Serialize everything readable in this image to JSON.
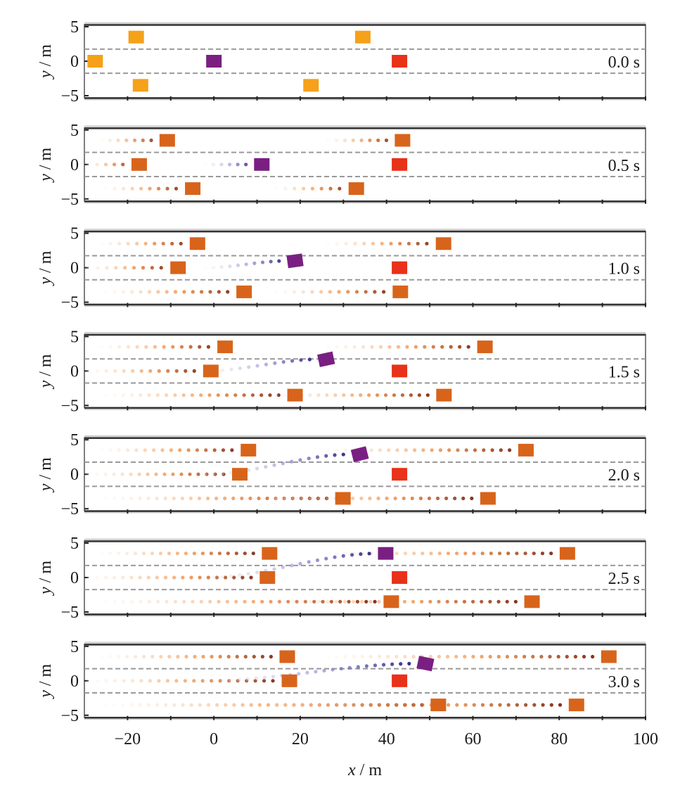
{
  "chart_data": {
    "type": "scatter",
    "title": "",
    "xlabel_var": "x",
    "xlabel_unit": " / m",
    "ylabel_var": "y",
    "ylabel_unit": " / m",
    "xlim": [
      -30,
      100
    ],
    "ylim": [
      -5.3,
      5.3
    ],
    "x_ticks_major": [
      -20,
      0,
      20,
      40,
      60,
      80,
      100
    ],
    "x_tick_labels": [
      "−20",
      "0",
      "20",
      "40",
      "60",
      "80",
      "100"
    ],
    "x_ticks_minor_step": 10,
    "y_ticks": [
      5,
      0,
      -5
    ],
    "y_tick_labels": [
      "5",
      "0",
      "−5"
    ],
    "lane_dividers_y": [
      1.75,
      -1.75
    ],
    "road_edges_y": [
      5.25,
      -5.25
    ],
    "grid": false,
    "colors": {
      "initial_vehicle": "#F5A11A",
      "vehicle": "#D8641B",
      "ego": "#7A1F82",
      "obstacle": "#E8321A",
      "vehicle_trail_recent": "#7A2A1A",
      "ego_trail_recent": "#2A1F80",
      "lane_divider": "#999999",
      "road_edge": "#333333"
    },
    "obstacle": {
      "x": 43,
      "y": 0
    },
    "panels": [
      {
        "time_label": "0.0 s",
        "t": 0.0,
        "ego": {
          "x": 0,
          "y": 0,
          "heading_deg": 0
        },
        "vehicles": [
          {
            "x": -27.5,
            "y": 0
          },
          {
            "x": -18,
            "y": 3.5
          },
          {
            "x": -17,
            "y": -3.5
          },
          {
            "x": 22.5,
            "y": -3.5
          },
          {
            "x": 34.5,
            "y": 3.5
          }
        ]
      },
      {
        "time_label": "0.5 s",
        "t": 0.5,
        "ego": {
          "x": 11.1,
          "y": 0,
          "heading_deg": 0
        },
        "vehicles": [
          {
            "x": -17.3,
            "y": 0
          },
          {
            "x": -10.8,
            "y": 3.5
          },
          {
            "x": -4.9,
            "y": -3.5
          },
          {
            "x": 33,
            "y": -3.5
          },
          {
            "x": 43.7,
            "y": 3.5
          }
        ]
      },
      {
        "time_label": "1.0 s",
        "t": 1.0,
        "ego": {
          "x": 18.8,
          "y": 1.0,
          "heading_deg": 8
        },
        "vehicles": [
          {
            "x": -8.3,
            "y": 0
          },
          {
            "x": -3.8,
            "y": 3.5
          },
          {
            "x": 7,
            "y": -3.5
          },
          {
            "x": 43.2,
            "y": -3.5
          },
          {
            "x": 53.2,
            "y": 3.5
          }
        ]
      },
      {
        "time_label": "1.5 s",
        "t": 1.5,
        "ego": {
          "x": 26,
          "y": 1.7,
          "heading_deg": 12
        },
        "vehicles": [
          {
            "x": -0.7,
            "y": 0
          },
          {
            "x": 2.6,
            "y": 3.5
          },
          {
            "x": 18.8,
            "y": -3.5
          },
          {
            "x": 53.3,
            "y": -3.5
          },
          {
            "x": 62.8,
            "y": 3.5
          }
        ]
      },
      {
        "time_label": "2.0 s",
        "t": 2.0,
        "ego": {
          "x": 33.8,
          "y": 2.9,
          "heading_deg": 14
        },
        "vehicles": [
          {
            "x": 6,
            "y": 0
          },
          {
            "x": 8,
            "y": 3.5
          },
          {
            "x": 29.9,
            "y": -3.5
          },
          {
            "x": 63.5,
            "y": -3.5
          },
          {
            "x": 72.3,
            "y": 3.5
          }
        ]
      },
      {
        "time_label": "2.5 s",
        "t": 2.5,
        "ego": {
          "x": 39.8,
          "y": 3.5,
          "heading_deg": 0
        },
        "vehicles": [
          {
            "x": 12.4,
            "y": 0
          },
          {
            "x": 12.9,
            "y": 3.5
          },
          {
            "x": 41.1,
            "y": -3.5
          },
          {
            "x": 73.7,
            "y": -3.5
          },
          {
            "x": 81.9,
            "y": 3.5
          }
        ]
      },
      {
        "time_label": "3.0 s",
        "t": 3.0,
        "ego": {
          "x": 49,
          "y": 2.5,
          "heading_deg": -12
        },
        "vehicles": [
          {
            "x": 17.5,
            "y": 0
          },
          {
            "x": 17,
            "y": 3.5
          },
          {
            "x": 52,
            "y": -3.5
          },
          {
            "x": 84,
            "y": -3.5
          },
          {
            "x": 91.5,
            "y": 3.5
          }
        ]
      }
    ]
  }
}
